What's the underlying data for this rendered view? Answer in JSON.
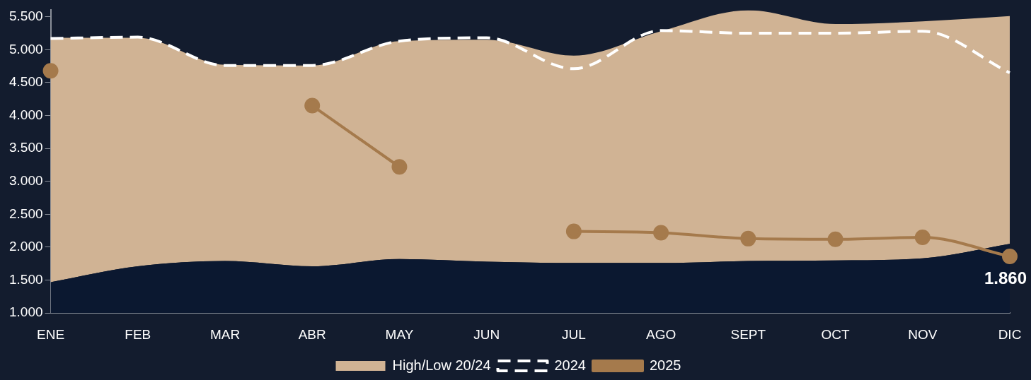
{
  "chart_data": {
    "type": "line",
    "categories": [
      "ENE",
      "FEB",
      "MAR",
      "ABR",
      "MAY",
      "JUN",
      "JUL",
      "AGO",
      "SEPT",
      "OCT",
      "NOV",
      "DIC"
    ],
    "series": [
      {
        "type": "area",
        "color": "#0b1830",
        "values": [
          1470,
          1710,
          1790,
          1710,
          1820,
          1780,
          1760,
          1760,
          1790,
          1800,
          1830,
          2050
        ]
      },
      {
        "name": "High/Low 20/24",
        "type": "area",
        "color": "#d0b394",
        "values": [
          3710,
          3470,
          2980,
          3050,
          3310,
          3370,
          3150,
          3520,
          3810,
          3590,
          3600,
          3460
        ]
      },
      {
        "name": "2024",
        "type": "line",
        "color": "#ffffff",
        "line_style": "dashed",
        "marker": "none",
        "values": [
          5170,
          5190,
          4760,
          4760,
          5130,
          5180,
          4710,
          5290,
          5250,
          5250,
          5280,
          4650
        ]
      },
      {
        "name": "2025",
        "type": "line",
        "color": "#a57a4c",
        "marker": "circle",
        "values": [
          4680,
          null,
          null,
          4150,
          3220,
          null,
          2240,
          2220,
          2130,
          2120,
          2150,
          1860
        ],
        "value_labels": [
          null,
          null,
          null,
          null,
          null,
          null,
          null,
          null,
          null,
          null,
          null,
          "1.860"
        ]
      }
    ],
    "ylim": [
      1000,
      5600
    ],
    "yticks": [
      {
        "value": 1000,
        "label": "1.000"
      },
      {
        "value": 1500,
        "label": "1.500"
      },
      {
        "value": 2000,
        "label": "2.000"
      },
      {
        "value": 2500,
        "label": "2.500"
      },
      {
        "value": 3000,
        "label": "3.000"
      },
      {
        "value": 3500,
        "label": "3.500"
      },
      {
        "value": 4000,
        "label": "4.000"
      },
      {
        "value": 4500,
        "label": "4.500"
      },
      {
        "value": 5000,
        "label": "5.000"
      },
      {
        "value": 5500,
        "label": "5.500"
      }
    ],
    "stacked": true,
    "grid": false,
    "legend": "bottom"
  }
}
